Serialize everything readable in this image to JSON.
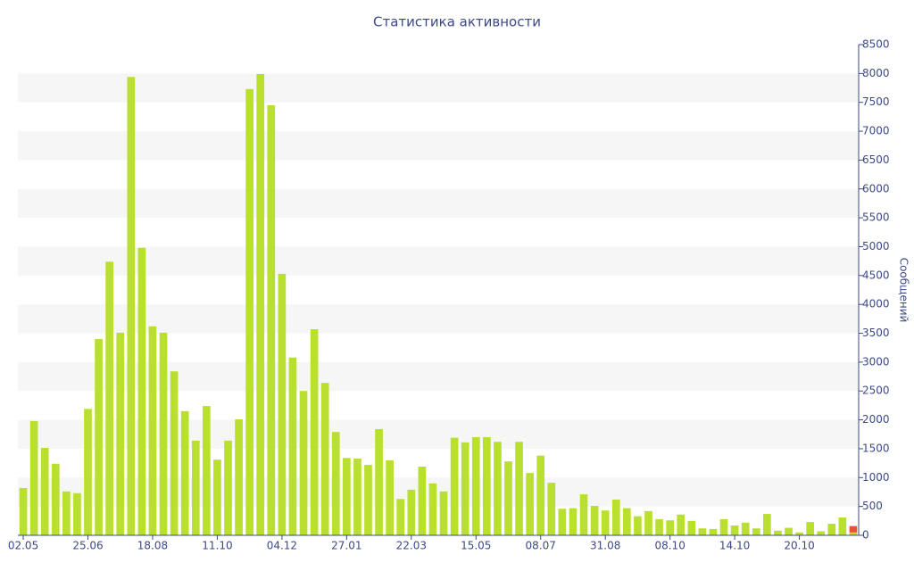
{
  "chart_data": {
    "type": "bar",
    "title": "Статистика активности",
    "y_label": "Сообщений",
    "categories": [
      "02.05",
      null,
      null,
      null,
      null,
      null,
      "25.06",
      null,
      null,
      null,
      null,
      null,
      "18.08",
      null,
      null,
      null,
      null,
      null,
      "11.10",
      null,
      null,
      null,
      null,
      null,
      "04.12",
      null,
      null,
      null,
      null,
      null,
      "27.01",
      null,
      null,
      null,
      null,
      null,
      "22.03",
      null,
      null,
      null,
      null,
      null,
      "15.05",
      null,
      null,
      null,
      null,
      null,
      "08.07",
      null,
      null,
      null,
      null,
      null,
      "31.08",
      null,
      null,
      null,
      null,
      null,
      "08.10",
      null,
      null,
      null,
      null,
      null,
      "14.10",
      null,
      null,
      null,
      null,
      null,
      "20.10",
      null,
      null,
      null,
      null,
      null
    ],
    "series": [
      {
        "color": "#b9e02e",
        "values": [
          820,
          1980,
          1515,
          1240,
          760,
          730,
          2190,
          3400,
          4740,
          3510,
          7940,
          4980,
          3620,
          3510,
          2840,
          2150,
          1640,
          2240,
          1310,
          1640,
          2010,
          7730,
          7990,
          7450,
          4530,
          3080,
          2500,
          3570,
          2640,
          1790,
          1340,
          1330,
          1220,
          1840,
          1300,
          630,
          790,
          1190,
          900,
          760,
          1690,
          1610,
          1700,
          1700,
          1620,
          1280,
          1620,
          1080,
          1380,
          910,
          460,
          470,
          710,
          510,
          430,
          620,
          470,
          330,
          420,
          280,
          260,
          360,
          250,
          120,
          110,
          280,
          170,
          220,
          120,
          370,
          80,
          130,
          50,
          230,
          70,
          200,
          310,
          50
        ]
      },
      {
        "color": "#e5533b",
        "values": [
          null,
          null,
          null,
          null,
          null,
          null,
          null,
          null,
          null,
          null,
          null,
          null,
          null,
          null,
          null,
          null,
          null,
          null,
          null,
          null,
          null,
          null,
          null,
          null,
          null,
          null,
          null,
          null,
          null,
          null,
          null,
          null,
          null,
          null,
          null,
          null,
          null,
          null,
          null,
          null,
          null,
          null,
          null,
          null,
          null,
          null,
          null,
          null,
          null,
          null,
          null,
          null,
          null,
          null,
          null,
          null,
          null,
          null,
          null,
          null,
          null,
          null,
          null,
          null,
          null,
          null,
          null,
          null,
          null,
          null,
          null,
          null,
          null,
          null,
          null,
          null,
          null,
          110
        ]
      }
    ],
    "ylim": [
      0,
      8500
    ],
    "yticks": [
      0,
      500,
      1000,
      1500,
      2000,
      2500,
      3000,
      3500,
      4000,
      4500,
      5000,
      5500,
      6000,
      6500,
      7000,
      7500,
      8000,
      8500
    ],
    "grid": "bands",
    "y_axis_side": "right"
  }
}
